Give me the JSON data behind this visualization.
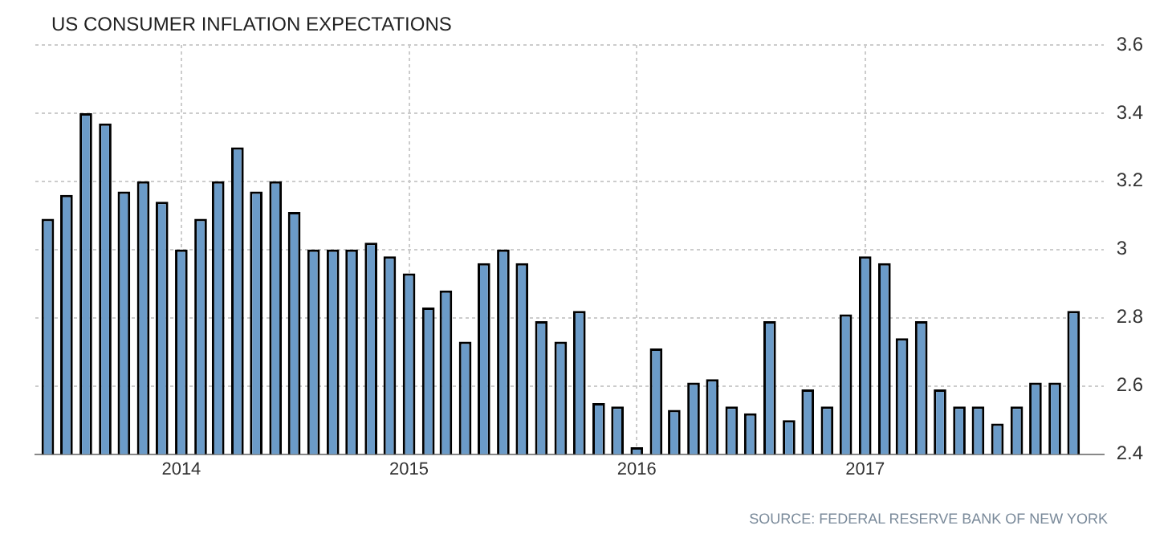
{
  "chart_data": {
    "type": "bar",
    "title": "US CONSUMER INFLATION EXPECTATIONS",
    "x": [
      "2013-06",
      "2013-07",
      "2013-08",
      "2013-09",
      "2013-10",
      "2013-11",
      "2013-12",
      "2014-01",
      "2014-02",
      "2014-03",
      "2014-04",
      "2014-05",
      "2014-06",
      "2014-07",
      "2014-08",
      "2014-09",
      "2014-10",
      "2014-11",
      "2014-12",
      "2015-01",
      "2015-02",
      "2015-03",
      "2015-04",
      "2015-05",
      "2015-06",
      "2015-07",
      "2015-08",
      "2015-09",
      "2015-10",
      "2015-11",
      "2015-12",
      "2016-01",
      "2016-02",
      "2016-03",
      "2016-04",
      "2016-05",
      "2016-06",
      "2016-07",
      "2016-08",
      "2016-09",
      "2016-10",
      "2016-11",
      "2016-12",
      "2017-01",
      "2017-02",
      "2017-03",
      "2017-04",
      "2017-05",
      "2017-06",
      "2017-07",
      "2017-08",
      "2017-09",
      "2017-10",
      "2017-11",
      "2017-12"
    ],
    "values": [
      3.09,
      3.16,
      3.4,
      3.37,
      3.17,
      3.2,
      3.14,
      3.0,
      3.09,
      3.2,
      3.3,
      3.17,
      3.2,
      3.11,
      3.0,
      3.0,
      3.0,
      3.02,
      2.98,
      2.93,
      2.83,
      2.88,
      2.73,
      2.96,
      3.0,
      2.96,
      2.79,
      2.73,
      2.82,
      2.55,
      2.54,
      2.42,
      2.71,
      2.53,
      2.61,
      2.62,
      2.54,
      2.52,
      2.79,
      2.5,
      2.59,
      2.54,
      2.81,
      2.98,
      2.96,
      2.74,
      2.79,
      2.59,
      2.54,
      2.54,
      2.49,
      2.54,
      2.61,
      2.61,
      2.82
    ],
    "color": "#6b9bc8",
    "xlim": [
      "2013-05-12",
      "2018-01-18"
    ],
    "xticks": [
      {
        "value": "2014-01",
        "label": "2014"
      },
      {
        "value": "2015-01",
        "label": "2015"
      },
      {
        "value": "2016-01",
        "label": "2016"
      },
      {
        "value": "2017-01",
        "label": "2017"
      }
    ],
    "ylim": [
      2.4,
      3.6
    ],
    "yticks": [
      2.4,
      2.6,
      2.8,
      3,
      3.2,
      3.4,
      3.6
    ],
    "grid": true,
    "annotations": [
      "SOURCE: FEDERAL RESERVE BANK OF NEW YORK"
    ]
  }
}
